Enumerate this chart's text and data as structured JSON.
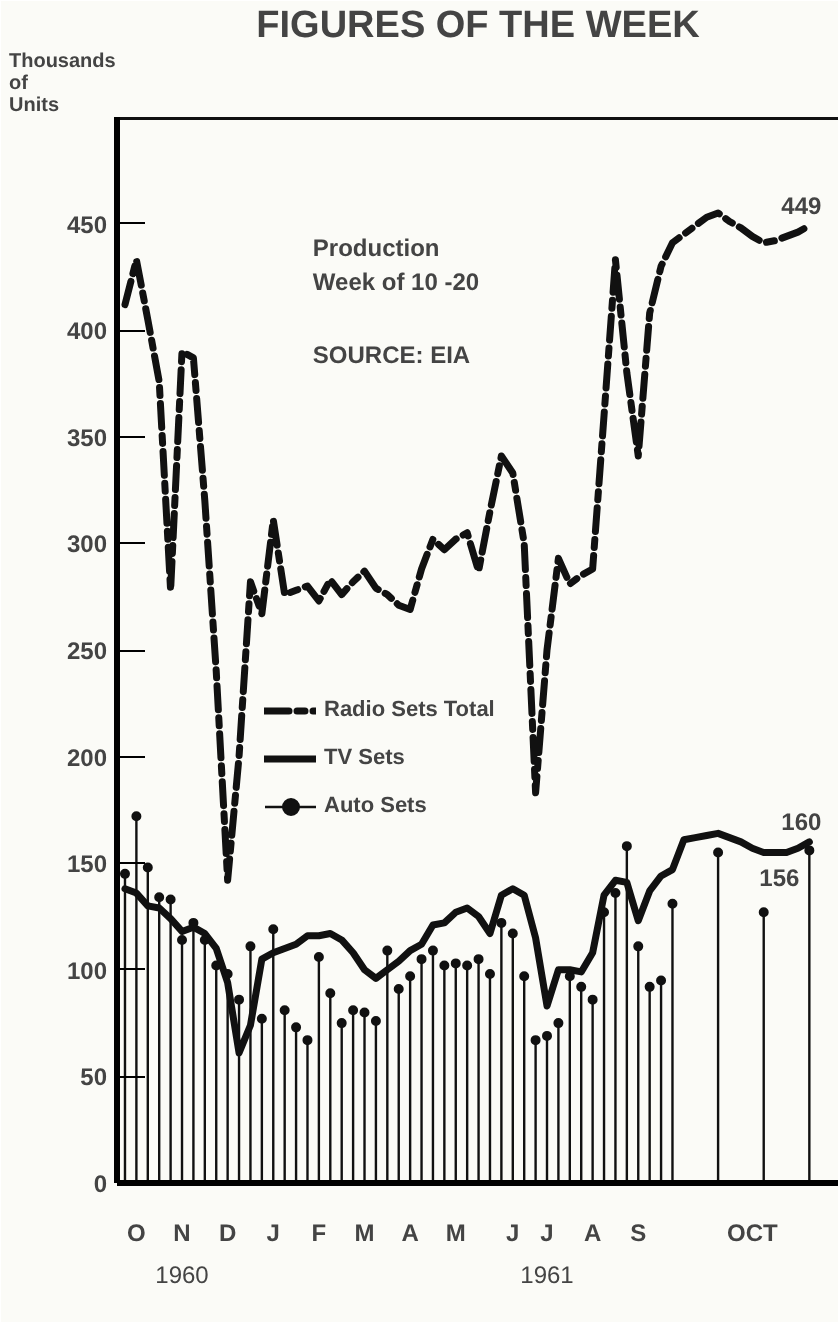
{
  "chart_data": {
    "type": "line",
    "title": "FIGURES OF THE WEEK",
    "ylabel": "Thousands of Units",
    "categories": [
      null,
      "O",
      null,
      null,
      null,
      "N",
      null,
      null,
      null,
      "D",
      null,
      null,
      null,
      "J",
      null,
      null,
      null,
      "F",
      null,
      null,
      null,
      "M",
      null,
      null,
      null,
      "A",
      null,
      null,
      null,
      "M",
      null,
      null,
      null,
      null,
      "J",
      null,
      null,
      "J",
      null,
      null,
      null,
      "A",
      null,
      null,
      null,
      "S",
      null,
      null,
      null,
      null,
      null,
      null,
      null,
      null,
      null,
      "OCT",
      null,
      null,
      null,
      null,
      null
    ],
    "ylim": [
      0,
      500
    ],
    "yticks": [
      0,
      50,
      100,
      150,
      200,
      250,
      300,
      350,
      400,
      450
    ],
    "grid": false,
    "legend": "center",
    "series": [
      {
        "name": "Radio Sets Total",
        "line_style": "dashed",
        "color": "#111111",
        "values": [
          412,
          433,
          405,
          376,
          278,
          390,
          387,
          320,
          240,
          142,
          200,
          282,
          267,
          311,
          276,
          278,
          280,
          273,
          283,
          276,
          282,
          287,
          279,
          276,
          271,
          269,
          288,
          302,
          297,
          302,
          305,
          287,
          315,
          341,
          333,
          300,
          183,
          250,
          293,
          281,
          285,
          288,
          360,
          433,
          380,
          341,
          408,
          430,
          441,
          445,
          449,
          453,
          455,
          451,
          448,
          444,
          441,
          442,
          444,
          446,
          449
        ]
      },
      {
        "name": "TV Sets",
        "line_style": "solid",
        "color": "#111111",
        "values": [
          138,
          136,
          130,
          129,
          124,
          118,
          120,
          117,
          110,
          94,
          61,
          74,
          105,
          108,
          110,
          112,
          116,
          116,
          117,
          114,
          108,
          100,
          96,
          100,
          104,
          109,
          112,
          121,
          122,
          127,
          129,
          125,
          117,
          135,
          138,
          135,
          115,
          83,
          100,
          100,
          99,
          108,
          135,
          142,
          141,
          123,
          137,
          144,
          147,
          161,
          162,
          163,
          164,
          162,
          160,
          157,
          155,
          155,
          155,
          157,
          160
        ]
      },
      {
        "name": "Auto Sets",
        "type": "lollipop",
        "color": "#111111",
        "values": [
          145,
          172,
          148,
          134,
          133,
          114,
          122,
          114,
          102,
          98,
          86,
          111,
          77,
          119,
          81,
          73,
          67,
          106,
          89,
          75,
          81,
          80,
          76,
          109,
          91,
          97,
          105,
          109,
          102,
          103,
          102,
          105,
          98,
          122,
          117,
          97,
          67,
          69,
          75,
          97,
          92,
          86,
          127,
          136,
          158,
          111,
          92,
          95,
          131,
          null,
          null,
          null,
          155,
          null,
          null,
          null,
          127,
          null,
          null,
          null,
          156
        ]
      }
    ],
    "annotations": [
      "Production\nWeek of 10 -20",
      "SOURCE: EIA",
      "1960",
      "1961",
      {
        "text": "449",
        "y": 449
      },
      {
        "text": "160",
        "y": 160
      },
      {
        "text": "156",
        "y": 156
      }
    ]
  }
}
